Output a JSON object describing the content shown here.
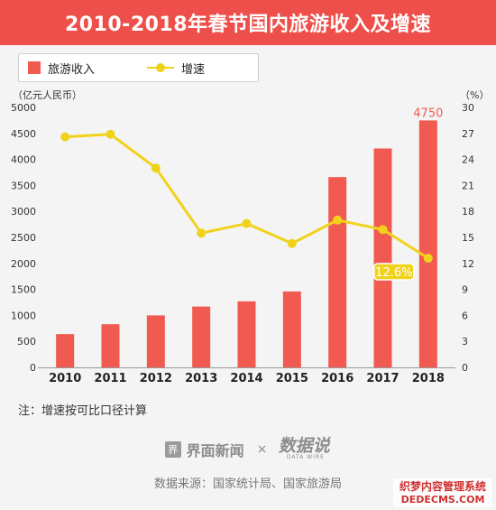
{
  "title": "2010-2018年春节国内旅游收入及增速",
  "legend": {
    "bar_label": "旅游收入",
    "line_label": "增速"
  },
  "left_unit": "（亿元人民币）",
  "right_unit": "（%）",
  "note": "注：增速按可比口径计算",
  "brand": {
    "logo_char": "界",
    "name": "界面新闻",
    "times": "×",
    "stamp_text": "数据说",
    "stamp_sub": "DATA WIRE"
  },
  "source": "数据来源：国家统计局、国家旅游局",
  "watermark": {
    "line1": "织梦内容管理系统",
    "line2": "DEDECMS.COM"
  },
  "colors": {
    "title_bg": "#ef4f4a",
    "bar": "#f15a50",
    "line": "#f1d21b",
    "label_bg": "#f1d21b"
  },
  "chart_data": {
    "type": "bar",
    "categories": [
      "2010",
      "2011",
      "2012",
      "2013",
      "2014",
      "2015",
      "2016",
      "2017",
      "2018"
    ],
    "series": [
      {
        "name": "旅游收入",
        "type": "bar",
        "axis": "left",
        "values": [
          640,
          830,
          1000,
          1170,
          1270,
          1460,
          3660,
          4210,
          4750
        ]
      },
      {
        "name": "增速",
        "type": "line",
        "axis": "right",
        "values": [
          26.6,
          26.9,
          23.0,
          15.5,
          16.6,
          14.3,
          17.0,
          15.9,
          12.6
        ]
      }
    ],
    "y_left": {
      "ticks": [
        0,
        500,
        1000,
        1500,
        2000,
        2500,
        3000,
        3500,
        4000,
        4500,
        5000
      ],
      "ylim": [
        0,
        5000
      ]
    },
    "y_right": {
      "ticks": [
        0,
        3,
        6,
        9,
        12,
        15,
        18,
        21,
        24,
        27,
        30
      ],
      "ylim": [
        0,
        30
      ]
    },
    "annotations": [
      {
        "series": "旅游收入",
        "category": "2018",
        "text": "4750"
      },
      {
        "series": "增速",
        "category": "2018",
        "text": "12.6%"
      }
    ],
    "grid": false,
    "legend_position": "top-left"
  }
}
